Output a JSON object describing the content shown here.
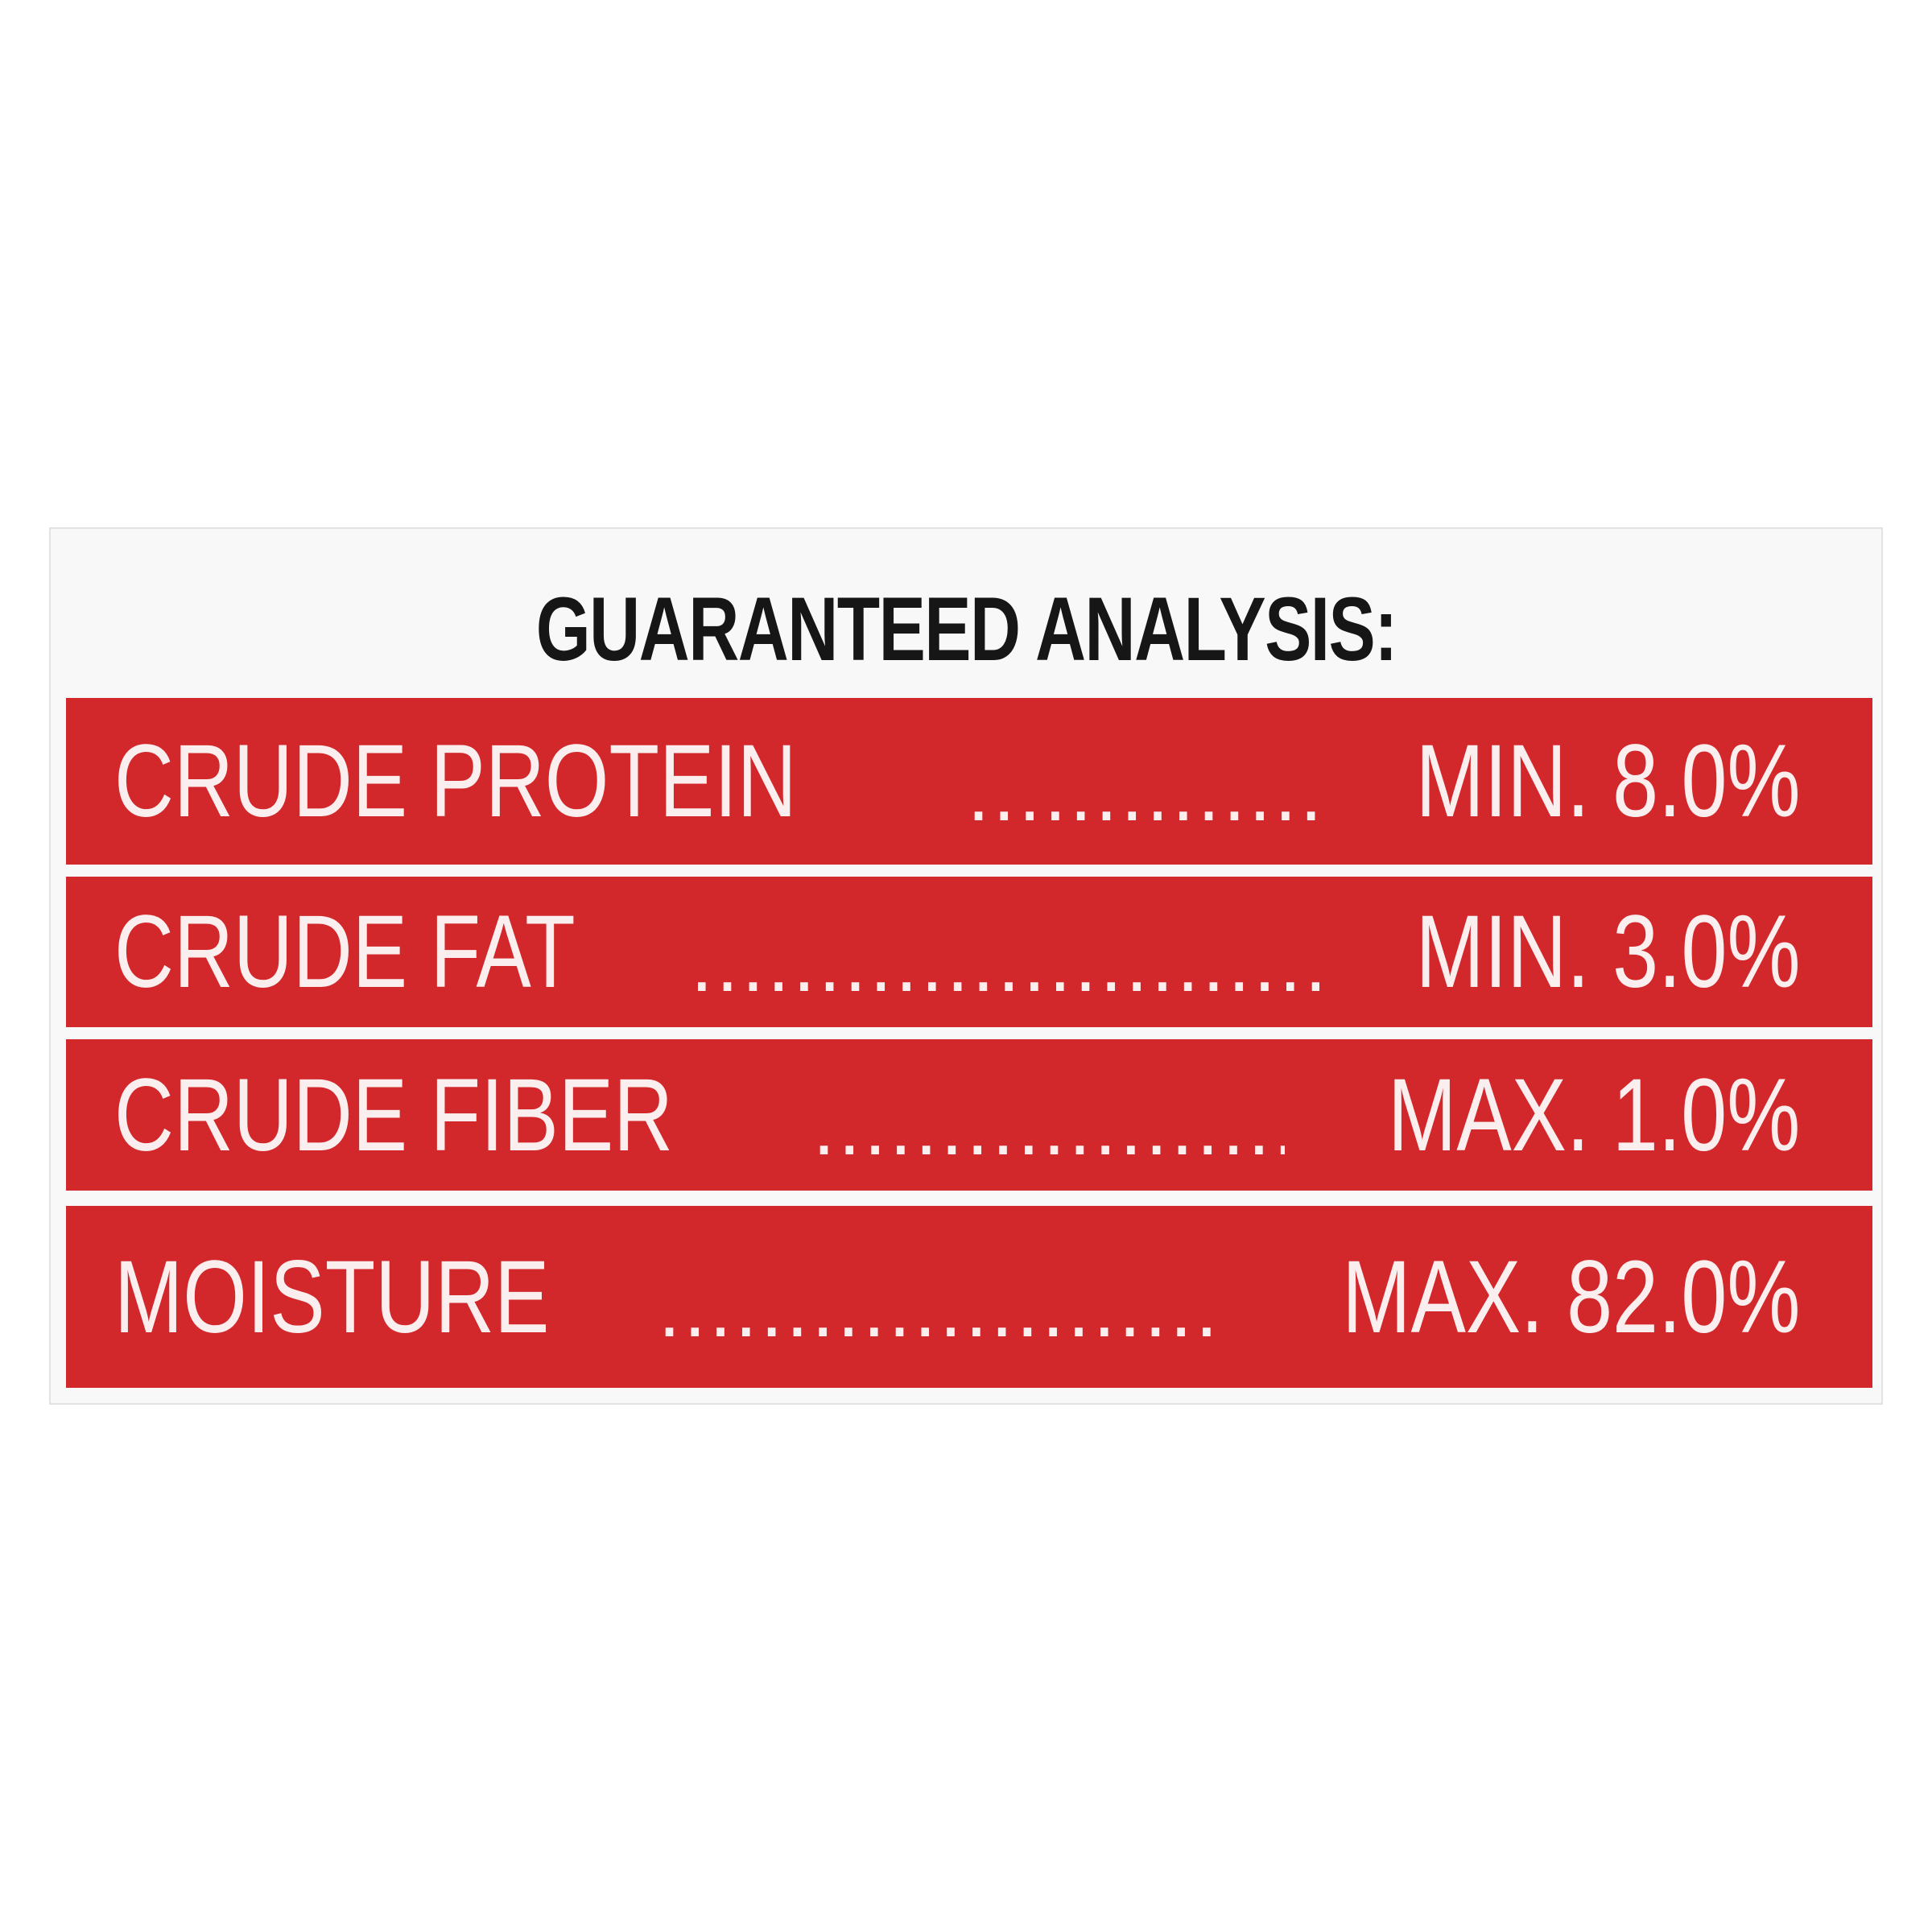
{
  "title": "GUARANTEED ANALYSIS:",
  "rows": [
    {
      "label": "CRUDE PROTEIN",
      "value": "MIN. 8.0%"
    },
    {
      "label": "CRUDE FAT",
      "value": "MIN. 3.0%"
    },
    {
      "label": "CRUDE FIBER",
      "value": "MAX. 1.0%"
    },
    {
      "label": "MOISTURE",
      "value": "MAX. 82.0%"
    }
  ],
  "colors": {
    "row_background": "#d3282b",
    "row_text": "#fbeeee",
    "title_text": "#161616"
  }
}
